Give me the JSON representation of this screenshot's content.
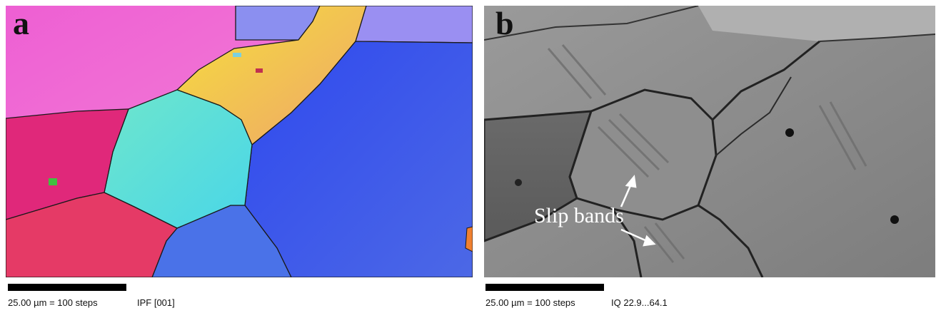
{
  "panel_a": {
    "letter": "a",
    "scale_text": "25.00 µm = 100 steps",
    "map_text": "IPF [001]"
  },
  "panel_b": {
    "letter": "b",
    "scale_text": "25.00 µm = 100 steps",
    "map_text": "IQ 22.9...64.1",
    "annotation": "Slip bands"
  },
  "colors": {
    "grain_boundary": "#1a1a1a",
    "pink_grain": "#f06ad8",
    "magenta_grain": "#e0287a",
    "red_grain": "#e53a66",
    "cyan_grain": "#59e0d2",
    "yellow_grain": "#f2c84a",
    "blue_grain": "#3f4fe8",
    "iq_background": "#8a8a8a"
  },
  "icons": [
    "slip-band-arrow-icon"
  ]
}
